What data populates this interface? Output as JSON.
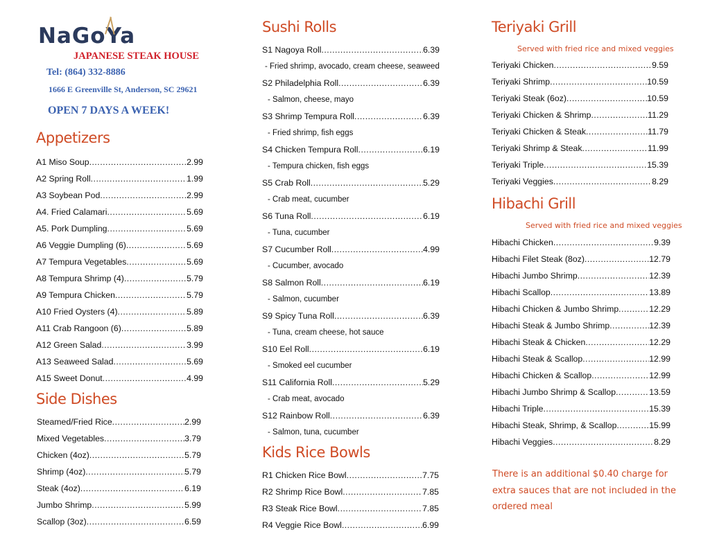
{
  "header": {
    "logo": "NaGoYa",
    "subtitle": "JAPANESE STEAK HOUSE",
    "tel": "Tel: (864) 332-8886",
    "address": "1666 E Greenville St, Anderson, SC 29621",
    "open": "OPEN 7 DAYS A WEEK!",
    "colors": {
      "logo": "#2b3a5c",
      "subtitle": "#d0202a",
      "info": "#3b62b0",
      "heading": "#cf4b25"
    }
  },
  "appetizers": {
    "title": "Appetizers",
    "items": [
      {
        "name": "A1 Miso Soup",
        "price": "2.99"
      },
      {
        "name": "A2 Spring Roll",
        "price": "1.99"
      },
      {
        "name": "A3 Soybean Pod",
        "price": "2.99"
      },
      {
        "name": "A4. Fried Calamari",
        "price": "5.69"
      },
      {
        "name": "A5. Pork Dumpling",
        "price": "5.69"
      },
      {
        "name": "A6 Veggie Dumpling (6)",
        "price": "5.69"
      },
      {
        "name": "A7 Tempura Vegetables",
        "price": "5.69"
      },
      {
        "name": "A8 Tempura Shrimp (4)",
        "price": "5.79"
      },
      {
        "name": "A9 Tempura Chicken",
        "price": "5.79"
      },
      {
        "name": "A10 Fried Oysters (4)",
        "price": "5.89"
      },
      {
        "name": "A11 Crab Rangoon (6)",
        "price": "5.89"
      },
      {
        "name": "A12 Green Salad",
        "price": "3.99"
      },
      {
        "name": "A13 Seaweed Salad",
        "price": "5.69"
      },
      {
        "name": "A15 Sweet Donut",
        "price": "4.99"
      }
    ]
  },
  "side_dishes": {
    "title": "Side Dishes",
    "items": [
      {
        "name": "Steamed/Fried Rice",
        "price": "2.99"
      },
      {
        "name": "Mixed Vegetables",
        "price": "3.79"
      },
      {
        "name": "Chicken (4oz)",
        "price": "5.79"
      },
      {
        "name": "Shrimp (4oz)",
        "price": "5.79"
      },
      {
        "name": "Steak (4oz)",
        "price": "6.19"
      },
      {
        "name": "Jumbo Shrimp",
        "price": "5.99"
      },
      {
        "name": "Scallop (3oz)",
        "price": "6.59"
      }
    ]
  },
  "sushi_rolls": {
    "title": "Sushi Rolls",
    "items": [
      {
        "name": "S1 Nagoya Roll",
        "price": "6.39",
        "desc": "- Fried shrimp, avocado, cream cheese, seaweed"
      },
      {
        "name": "S2 Philadelphia Roll",
        "price": "6.39",
        "desc": "- Salmon, cheese, mayo"
      },
      {
        "name": "S3 Shrimp Tempura Roll",
        "price": "6.39",
        "desc": "- Fried shrimp, fish eggs"
      },
      {
        "name": "S4 Chicken Tempura Roll",
        "price": "6.19",
        "desc": "- Tempura chicken, fish eggs"
      },
      {
        "name": "S5 Crab Roll",
        "price": "5.29",
        "desc": "- Crab meat, cucumber"
      },
      {
        "name": "S6 Tuna Roll",
        "price": "6.19",
        "desc": "- Tuna, cucumber"
      },
      {
        "name": "S7 Cucumber Roll",
        "price": "4.99",
        "desc": "- Cucumber, avocado"
      },
      {
        "name": "S8 Salmon Roll",
        "price": "6.19",
        "desc": "- Salmon, cucumber"
      },
      {
        "name": "S9 Spicy Tuna Roll",
        "price": "6.39",
        "desc": "- Tuna, cream cheese, hot sauce"
      },
      {
        "name": "S10 Eel Roll",
        "price": "6.19",
        "desc": "- Smoked eel cucumber"
      },
      {
        "name": "S11 California Roll",
        "price": "5.29",
        "desc": "- Crab meat, avocado"
      },
      {
        "name": "S12 Rainbow Roll",
        "price": "6.39",
        "desc": "- Salmon, tuna, cucumber"
      }
    ]
  },
  "kids_rice_bowls": {
    "title": "Kids Rice Bowls",
    "items": [
      {
        "name": "R1 Chicken Rice Bowl",
        "price": "7.75"
      },
      {
        "name": "R2 Shrimp Rice Bowl",
        "price": "7.85"
      },
      {
        "name": "R3 Steak Rice Bowl",
        "price": "7.85"
      },
      {
        "name": "R4 Veggie Rice Bowl",
        "price": "6.99"
      }
    ]
  },
  "teriyaki_grill": {
    "title": "Teriyaki Grill",
    "subtitle": "Served with fried rice and mixed veggies",
    "items": [
      {
        "name": "Teriyaki Chicken",
        "price": "9.59"
      },
      {
        "name": "Teriyaki Shrimp",
        "price": "10.59"
      },
      {
        "name": "Teriyaki Steak (6oz)",
        "price": "10.59"
      },
      {
        "name": "Teriyaki Chicken & Shrimp",
        "price": "11.29"
      },
      {
        "name": "Teriyaki Chicken & Steak",
        "price": "11.79"
      },
      {
        "name": "Teriyaki Shrimp & Steak",
        "price": "11.99"
      },
      {
        "name": "Teriyaki Triple",
        "price": "15.39"
      },
      {
        "name": "Teriyaki Veggies",
        "price": "8.29"
      }
    ]
  },
  "hibachi_grill": {
    "title": "Hibachi Grill",
    "subtitle": "Served with fried rice and mixed veggies",
    "items": [
      {
        "name": "Hibachi Chicken",
        "price": "9.39"
      },
      {
        "name": "Hibachi Filet Steak (8oz)",
        "price": "12.79"
      },
      {
        "name": "Hibachi Jumbo Shrimp",
        "price": "12.39"
      },
      {
        "name": "Hibachi Scallop",
        "price": "13.89"
      },
      {
        "name": "Hibachi Chicken & Jumbo Shrimp",
        "price": "12.29"
      },
      {
        "name": "Hibachi Steak & Jumbo Shrimp",
        "price": "12.39"
      },
      {
        "name": "Hibachi Steak & Chicken",
        "price": "12.29"
      },
      {
        "name": "Hibachi Steak & Scallop",
        "price": "12.99"
      },
      {
        "name": "Hibachi Chicken & Scallop",
        "price": "12.99"
      },
      {
        "name": "Hibachi Jumbo Shrimp & Scallop",
        "price": "13.59"
      },
      {
        "name": "Hibachi Triple",
        "price": "15.39"
      },
      {
        "name": "Hibachi Steak, Shrimp, & Scallop",
        "price": "15.99"
      },
      {
        "name": "Hibachi Veggies",
        "price": "8.29"
      }
    ]
  },
  "note": "There is an additional $0.40 charge for extra sauces that are not included in the ordered meal"
}
